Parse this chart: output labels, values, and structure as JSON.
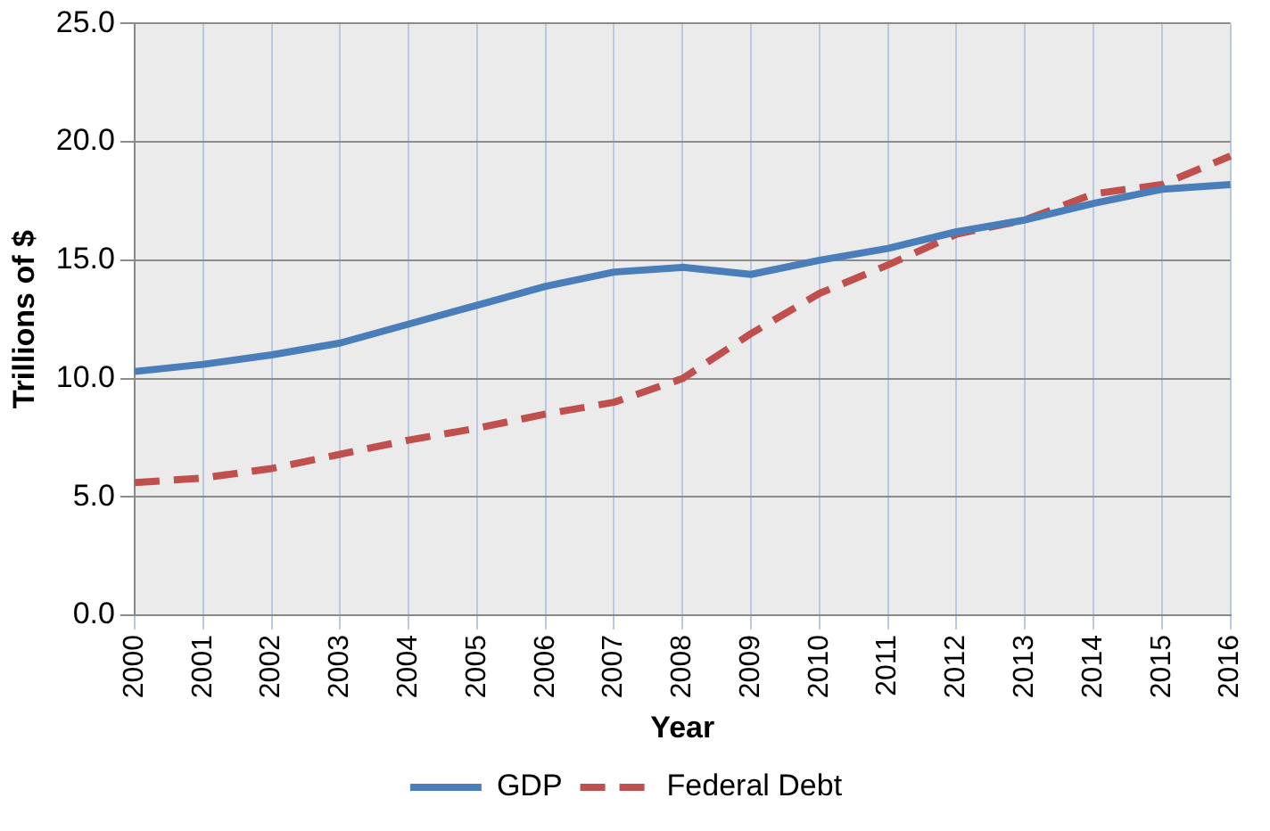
{
  "chart_data": {
    "type": "line",
    "xlabel": "Year",
    "ylabel": "Trillions of $",
    "categories": [
      "2000",
      "2001",
      "2002",
      "2003",
      "2004",
      "2005",
      "2006",
      "2007",
      "2008",
      "2009",
      "2010",
      "2011",
      "2012",
      "2013",
      "2014",
      "2015",
      "2016"
    ],
    "series": [
      {
        "name": "GDP",
        "color": "#4a7ebb",
        "line_style": "solid",
        "values": [
          10.3,
          10.6,
          11.0,
          11.5,
          12.3,
          13.1,
          13.9,
          14.5,
          14.7,
          14.4,
          15.0,
          15.5,
          16.2,
          16.7,
          17.4,
          18.0,
          18.2
        ]
      },
      {
        "name": "Federal Debt",
        "color": "#c0504d",
        "line_style": "dashed",
        "values": [
          5.6,
          5.8,
          6.2,
          6.8,
          7.4,
          7.9,
          8.5,
          9.0,
          10.0,
          11.9,
          13.6,
          14.8,
          16.1,
          16.7,
          17.8,
          18.2,
          19.4
        ]
      }
    ],
    "ylim": [
      0,
      25
    ],
    "yticks": [
      {
        "value": 0,
        "label": "0.0"
      },
      {
        "value": 5,
        "label": "5.0"
      },
      {
        "value": 10,
        "label": "10.0"
      },
      {
        "value": 15,
        "label": "15.0"
      },
      {
        "value": 20,
        "label": "20.0"
      },
      {
        "value": 25,
        "label": "25.0"
      }
    ],
    "grid": true,
    "legend": "bottom",
    "marker": "none"
  }
}
